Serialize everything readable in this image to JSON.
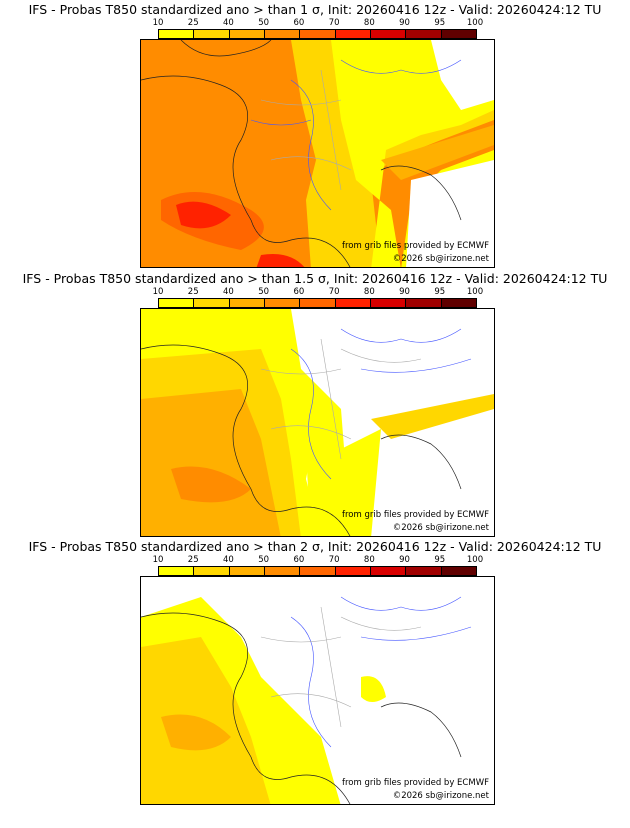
{
  "panels": [
    {
      "title": "IFS - Probas T850  standardized ano > than 1 σ, Init: 20260416 12z - Valid: 20260424:12 TU",
      "level": "1"
    },
    {
      "title": "IFS - Probas T850  standardized ano > than 1.5 σ, Init: 20260416 12z - Valid: 20260424:12 TU",
      "level": "1.5"
    },
    {
      "title": "IFS - Probas T850  standardized ano > than 2 σ, Init: 20260416 12z - Valid: 20260424:12 TU",
      "level": "2"
    }
  ],
  "colorbar": {
    "ticks": [
      "10",
      "25",
      "40",
      "50",
      "60",
      "70",
      "80",
      "90",
      "95",
      "100"
    ],
    "colors": [
      "#ffff00",
      "#ffd700",
      "#ffb000",
      "#ff8c00",
      "#ff6600",
      "#ff2200",
      "#d80000",
      "#a00000",
      "#600000"
    ]
  },
  "credits": {
    "source": "from grib files provided by ECMWF",
    "copyright": "©2026 sb@irizone.net"
  }
}
